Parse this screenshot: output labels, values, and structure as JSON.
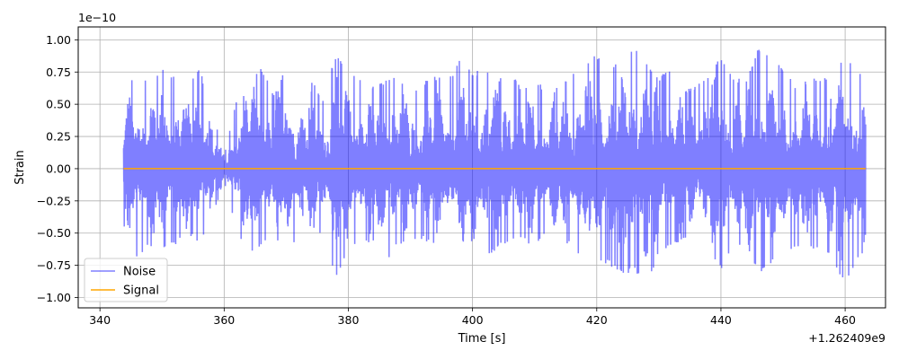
{
  "chart_data": {
    "type": "line",
    "title": "",
    "xlabel": "Time [s]",
    "ylabel": "Strain",
    "x_offset_label": "+1.262409e9",
    "y_scale_label": "1e−10",
    "xlim": [
      336.5,
      466.5
    ],
    "ylim": [
      -1.08,
      1.1
    ],
    "x_ticks": [
      340,
      360,
      380,
      400,
      420,
      440,
      460
    ],
    "x_tick_labels": [
      "340",
      "360",
      "380",
      "400",
      "420",
      "440",
      "460"
    ],
    "y_ticks": [
      -1.0,
      -0.75,
      -0.5,
      -0.25,
      0.0,
      0.25,
      0.5,
      0.75,
      1.0
    ],
    "y_tick_labels": [
      "−1.00",
      "−0.75",
      "−0.50",
      "−0.25",
      "0.00",
      "0.25",
      "0.50",
      "0.75",
      "1.00"
    ],
    "grid": true,
    "legend": "lower-left",
    "series": [
      {
        "name": "Noise",
        "color": "#0000ff",
        "opacity": 0.5,
        "x_range": [
          343.8,
          463.3
        ],
        "envelope": {
          "x": [
            344,
            346,
            348,
            350,
            352,
            354,
            356,
            358,
            360,
            362,
            364,
            366,
            368,
            370,
            372,
            374,
            376,
            378,
            380,
            382,
            384,
            386,
            388,
            390,
            392,
            394,
            396,
            398,
            400,
            402,
            404,
            406,
            408,
            410,
            412,
            414,
            416,
            418,
            420,
            422,
            424,
            426,
            428,
            430,
            432,
            434,
            436,
            438,
            440,
            442,
            444,
            446,
            448,
            450,
            452,
            454,
            456,
            458,
            460,
            462,
            463
          ],
          "upper": [
            0.5,
            0.85,
            0.6,
            0.82,
            0.72,
            0.65,
            0.78,
            0.5,
            0.1,
            0.55,
            0.76,
            0.78,
            0.6,
            0.8,
            0.62,
            0.7,
            0.55,
            0.9,
            0.8,
            0.72,
            0.65,
            0.7,
            0.75,
            0.6,
            0.68,
            0.72,
            0.68,
            0.85,
            0.75,
            0.8,
            0.7,
            0.78,
            0.62,
            0.72,
            0.6,
            0.65,
            0.72,
            0.9,
            0.88,
            0.84,
            0.8,
            0.98,
            0.82,
            0.72,
            0.8,
            0.6,
            0.65,
            0.75,
            0.88,
            0.72,
            0.68,
            0.95,
            0.85,
            0.8,
            0.65,
            0.7,
            0.72,
            0.75,
            0.88,
            0.78,
            0.74
          ],
          "lower": [
            -0.45,
            -0.72,
            -0.6,
            -0.62,
            -0.6,
            -0.5,
            -0.58,
            -0.4,
            -0.1,
            -0.5,
            -0.65,
            -0.6,
            -0.52,
            -0.68,
            -0.55,
            -0.55,
            -0.5,
            -0.88,
            -0.62,
            -0.6,
            -0.58,
            -0.75,
            -0.6,
            -0.58,
            -0.55,
            -0.6,
            -0.58,
            -0.62,
            -0.82,
            -0.7,
            -0.62,
            -0.58,
            -0.55,
            -0.62,
            -0.5,
            -0.55,
            -0.6,
            -0.75,
            -0.7,
            -0.75,
            -0.82,
            -0.8,
            -0.95,
            -0.65,
            -0.6,
            -0.55,
            -0.6,
            -0.62,
            -0.8,
            -0.6,
            -0.62,
            -0.82,
            -0.75,
            -0.7,
            -0.6,
            -0.62,
            -0.65,
            -0.7,
            -0.92,
            -0.72,
            -0.68
          ]
        }
      },
      {
        "name": "Signal",
        "color": "#ffa500",
        "x": [
          343.8,
          463.3
        ],
        "values": [
          0.0,
          0.0
        ]
      }
    ]
  }
}
